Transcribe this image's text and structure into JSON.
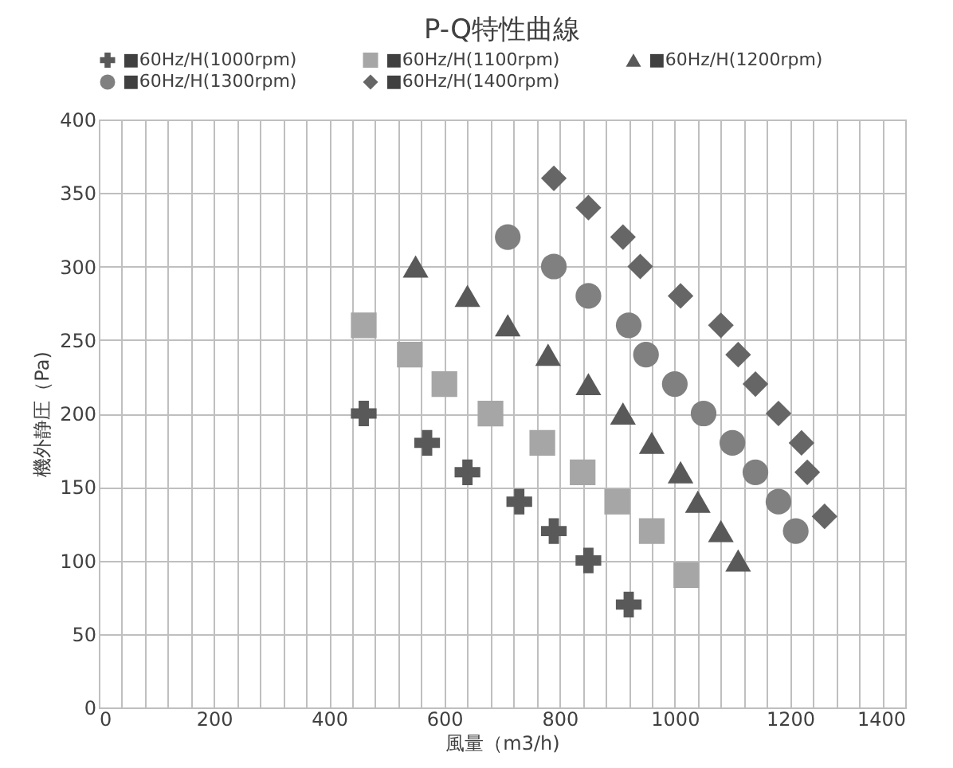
{
  "chart_data": {
    "type": "scatter",
    "title": "P-Q特性曲線",
    "xlabel": "風量（m3/h)",
    "ylabel": "機外静圧（Pa)",
    "xlim": [
      0,
      1400
    ],
    "xticks": [
      0,
      {
        "value": 40,
        "label": null
      },
      {
        "value": 80,
        "label": null
      },
      {
        "value": 120,
        "label": null
      },
      {
        "value": 160,
        "label": null
      },
      200,
      {
        "value": 240,
        "label": null
      },
      {
        "value": 280,
        "label": null
      },
      {
        "value": 320,
        "label": null
      },
      {
        "value": 360,
        "label": null
      },
      400,
      {
        "value": 440,
        "label": null
      },
      {
        "value": 480,
        "label": null
      },
      {
        "value": 520,
        "label": null
      },
      {
        "value": 560,
        "label": null
      },
      600,
      {
        "value": 640,
        "label": null
      },
      {
        "value": 680,
        "label": null
      },
      {
        "value": 720,
        "label": null
      },
      {
        "value": 760,
        "label": null
      },
      800,
      {
        "value": 840,
        "label": null
      },
      {
        "value": 880,
        "label": null
      },
      {
        "value": 920,
        "label": null
      },
      {
        "value": 960,
        "label": null
      },
      1000,
      {
        "value": 1040,
        "label": null
      },
      {
        "value": 1080,
        "label": null
      },
      {
        "value": 1120,
        "label": null
      },
      {
        "value": 1160,
        "label": null
      },
      1200,
      {
        "value": 1240,
        "label": null
      },
      {
        "value": 1280,
        "label": null
      },
      {
        "value": 1320,
        "label": null
      },
      {
        "value": 1360,
        "label": null
      },
      1400
    ],
    "ylim": [
      0,
      400
    ],
    "yticks": [
      0,
      50,
      100,
      150,
      200,
      250,
      300,
      350,
      400
    ],
    "grid": true,
    "legend": "top",
    "series": [
      {
        "name": "■60Hz/H(1000rpm)",
        "color": "#595959",
        "marker": "cross",
        "x": [
          460,
          570,
          640,
          730,
          790,
          850,
          920
        ],
        "values": [
          200,
          180,
          160,
          140,
          120,
          100,
          70
        ]
      },
      {
        "name": "■60Hz/H(1100rpm)",
        "color": "#a6a6a6",
        "marker": "square",
        "x": [
          460,
          540,
          600,
          680,
          770,
          840,
          900,
          960,
          1020
        ],
        "values": [
          260,
          240,
          220,
          200,
          180,
          160,
          140,
          120,
          90
        ]
      },
      {
        "name": "■60Hz/H(1200rpm)",
        "color": "#595959",
        "marker": "triangle",
        "x": [
          550,
          640,
          710,
          780,
          850,
          910,
          960,
          1010,
          1040,
          1080,
          1110
        ],
        "values": [
          300,
          280,
          260,
          240,
          220,
          200,
          180,
          160,
          140,
          120,
          100
        ]
      },
      {
        "name": "■60Hz/H(1300rpm)",
        "color": "#808080",
        "marker": "circle",
        "x": [
          710,
          790,
          850,
          920,
          950,
          1000,
          1050,
          1100,
          1140,
          1180,
          1210
        ],
        "values": [
          320,
          300,
          280,
          260,
          240,
          220,
          200,
          180,
          160,
          140,
          120
        ]
      },
      {
        "name": "■60Hz/H(1400rpm)",
        "color": "#666666",
        "marker": "diamond",
        "x": [
          790,
          850,
          910,
          940,
          1010,
          1080,
          1110,
          1140,
          1180,
          1220,
          1230,
          1260
        ],
        "values": [
          360,
          340,
          320,
          300,
          280,
          260,
          240,
          220,
          200,
          180,
          160,
          130
        ]
      }
    ]
  }
}
